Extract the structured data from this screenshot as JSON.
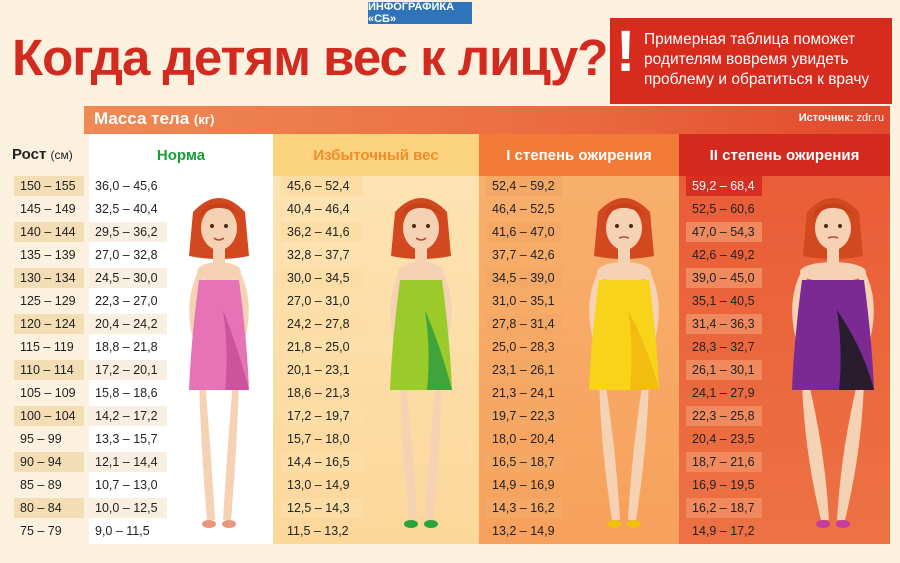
{
  "tag": "ИНФОГРАФИКА «СБ»",
  "title": "Когда детям вес к лицу?",
  "note": {
    "mark": "!",
    "text": "Примерная таблица поможет родителям вовремя увидеть проблему и обратиться к врачу"
  },
  "mass_header": {
    "label": "Масса тела",
    "unit": "(кг)"
  },
  "source": {
    "label": "Источник:",
    "value": "zdr.ru"
  },
  "height_header": {
    "label": "Рост",
    "unit": "(см)"
  },
  "columns": [
    {
      "name": "Норма",
      "color": "#16a038"
    },
    {
      "name": "Избыточный вес",
      "color": "#f08d2b"
    },
    {
      "name": "I степень ожирения",
      "color": "#f07a36"
    },
    {
      "name": "II степень ожирения",
      "color": "#d3291f"
    }
  ],
  "rows": [
    {
      "height": "150 – 155",
      "values": [
        "36,0 – 45,6",
        "45,6 – 52,4",
        "52,4 – 59,2",
        "59,2 – 68,4"
      ]
    },
    {
      "height": "145 – 149",
      "values": [
        "32,5 – 40,4",
        "40,4 – 46,4",
        "46,4 – 52,5",
        "52,5 – 60,6"
      ]
    },
    {
      "height": "140 – 144",
      "values": [
        "29,5 – 36,2",
        "36,2 – 41,6",
        "41,6 – 47,0",
        "47,0 – 54,3"
      ]
    },
    {
      "height": "135 – 139",
      "values": [
        "27,0 – 32,8",
        "32,8 – 37,7",
        "37,7 – 42,6",
        "42,6 – 49,2"
      ]
    },
    {
      "height": "130 – 134",
      "values": [
        "24,5 – 30,0",
        "30,0 – 34,5",
        "34,5 – 39,0",
        "39,0 – 45,0"
      ]
    },
    {
      "height": "125 – 129",
      "values": [
        "22,3 – 27,0",
        "27,0 – 31,0",
        "31,0 – 35,1",
        "35,1 – 40,5"
      ]
    },
    {
      "height": "120 – 124",
      "values": [
        "20,4 – 24,2",
        "24,2 – 27,8",
        "27,8 – 31,4",
        "31,4 – 36,3"
      ]
    },
    {
      "height": "115 – 119",
      "values": [
        "18,8 – 21,8",
        "21,8 – 25,0",
        "25,0 – 28,3",
        "28,3 – 32,7"
      ]
    },
    {
      "height": "110 – 114",
      "values": [
        "17,2 – 20,1",
        "20,1 – 23,1",
        "23,1 – 26,1",
        "26,1 – 30,1"
      ]
    },
    {
      "height": "105 – 109",
      "values": [
        "15,8 – 18,6",
        "18,6 – 21,3",
        "21,3 – 24,1",
        "24,1 – 27,9"
      ]
    },
    {
      "height": "100 – 104",
      "values": [
        "14,2 – 17,2",
        "17,2 – 19,7",
        "19,7 – 22,3",
        "22,3 – 25,8"
      ]
    },
    {
      "height": "95 – 99",
      "values": [
        "13,3 – 15,7",
        "15,7 – 18,0",
        "18,0 – 20,4",
        "20,4 – 23,5"
      ]
    },
    {
      "height": "90 – 94",
      "values": [
        "12,1 – 14,4",
        "14,4 – 16,5",
        "16,5 – 18,7",
        "18,7 – 21,6"
      ]
    },
    {
      "height": "85 – 89",
      "values": [
        "10,7 – 13,0",
        "13,0 – 14,9",
        "14,9 – 16,9",
        "16,9 – 19,5"
      ]
    },
    {
      "height": "80 – 84",
      "values": [
        "10,0 – 12,5",
        "12,5 – 14,3",
        "14,3 – 16,2",
        "16,2 – 18,7"
      ]
    },
    {
      "height": "75 – 79",
      "values": [
        "9,0 – 11,5",
        "11,5 – 13,2",
        "13,2 – 14,9",
        "14,9 – 17,2"
      ]
    }
  ],
  "figures": [
    {
      "dress": "#e573b5",
      "dress_dark": "#c94e98",
      "shoes": "#e9967a"
    },
    {
      "dress": "#9acb2b",
      "dress_dark": "#2f9e3e",
      "shoes": "#2aa53a"
    },
    {
      "dress": "#f7d31a",
      "dress_dark": "#f0b90f",
      "shoes": "#f2c00e"
    },
    {
      "dress": "#7b2a93",
      "dress_dark": "#1b1b1b",
      "shoes": "#c63da0"
    }
  ]
}
